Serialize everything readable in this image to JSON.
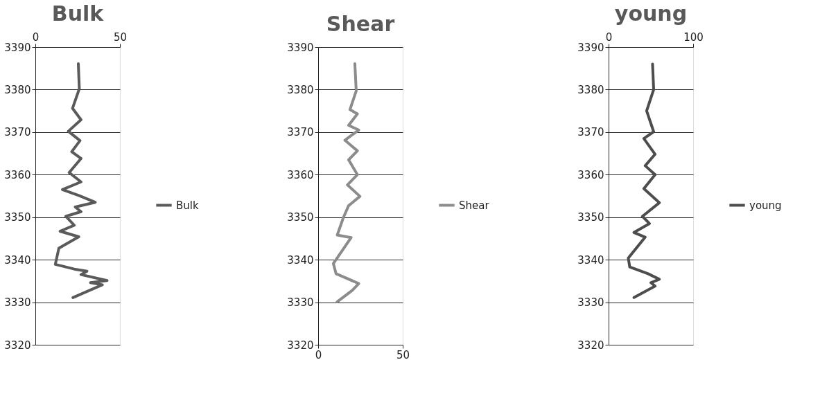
{
  "chart_data": [
    {
      "type": "line",
      "title": "Bulk",
      "xlim": [
        0,
        50
      ],
      "xticks": [
        0,
        50
      ],
      "ylim": [
        3320,
        3390
      ],
      "yticks": [
        3320,
        3330,
        3340,
        3350,
        3360,
        3370,
        3380,
        3390
      ],
      "grid": "y",
      "legend": "right",
      "marker": "none",
      "line_style": "solid",
      "series": [
        {
          "name": "Bulk",
          "color": "#5a5a5a",
          "x": [
            25.4,
            26,
            22,
            27,
            19.5,
            26.4,
            21.5,
            27,
            20,
            27,
            16,
            25.7,
            35.4,
            23.6,
            27,
            18,
            23,
            14.6,
            25.7,
            13.9,
            11.8,
            23,
            30.5,
            27,
            42.4,
            32.6,
            39.6,
            22.2
          ],
          "values": [
            3386.1,
            3380.2,
            3375.6,
            3372.9,
            3370.2,
            3368,
            3365.4,
            3363.8,
            3360.5,
            3358.3,
            3356.5,
            3355.1,
            3353.5,
            3352.4,
            3351.3,
            3350.2,
            3348.1,
            3346.7,
            3345.4,
            3342.7,
            3338.9,
            3337.8,
            3337.3,
            3336.5,
            3335.1,
            3334.6,
            3334.1,
            3331.1
          ]
        }
      ]
    },
    {
      "type": "line",
      "title": "Shear",
      "xlim": [
        0,
        50
      ],
      "xticks": [
        0,
        50
      ],
      "ylim": [
        3320,
        3390
      ],
      "yticks": [
        3320,
        3330,
        3340,
        3350,
        3360,
        3370,
        3380,
        3390
      ],
      "grid": "y",
      "legend": "right",
      "marker": "none",
      "line_style": "solid",
      "series": [
        {
          "name": "Shear",
          "color": "#8c8c8c",
          "x": [
            21.7,
            22.5,
            18.8,
            23.2,
            18,
            24,
            15.8,
            23.2,
            18,
            23.2,
            17.3,
            24.7,
            18,
            15,
            11.3,
            19.5,
            9,
            10.6,
            24,
            20.2,
            11.3
          ],
          "values": [
            3386.1,
            3379.7,
            3375.3,
            3374.3,
            3371.6,
            3370.5,
            3368.1,
            3365.6,
            3363.5,
            3360,
            3357.6,
            3354.9,
            3352.7,
            3350,
            3345.8,
            3345.2,
            3339.1,
            3336.7,
            3334.4,
            3332.8,
            3330.1
          ]
        }
      ]
    },
    {
      "type": "line",
      "title": "young",
      "xlim": [
        0,
        100
      ],
      "xticks": [
        0,
        100
      ],
      "ylim": [
        3320,
        3390
      ],
      "yticks": [
        3320,
        3330,
        3340,
        3350,
        3360,
        3370,
        3380,
        3390
      ],
      "grid": "y",
      "legend": "right",
      "marker": "none",
      "line_style": "solid",
      "series": [
        {
          "name": "young",
          "color": "#4d4d4d",
          "x": [
            52,
            53.3,
            45,
            53.3,
            41.7,
            55,
            43.3,
            55,
            41.7,
            60,
            40,
            48.3,
            30,
            43.3,
            23.3,
            25,
            46.7,
            60,
            50,
            55,
            30
          ],
          "values": [
            3386,
            3380,
            3375,
            3370.1,
            3368.5,
            3364.8,
            3362.1,
            3360,
            3356.7,
            3353.4,
            3350.2,
            3348.5,
            3346.4,
            3345.3,
            3340.4,
            3338.3,
            3336.7,
            3335.4,
            3334.6,
            3333.8,
            3331.1
          ]
        }
      ]
    }
  ]
}
